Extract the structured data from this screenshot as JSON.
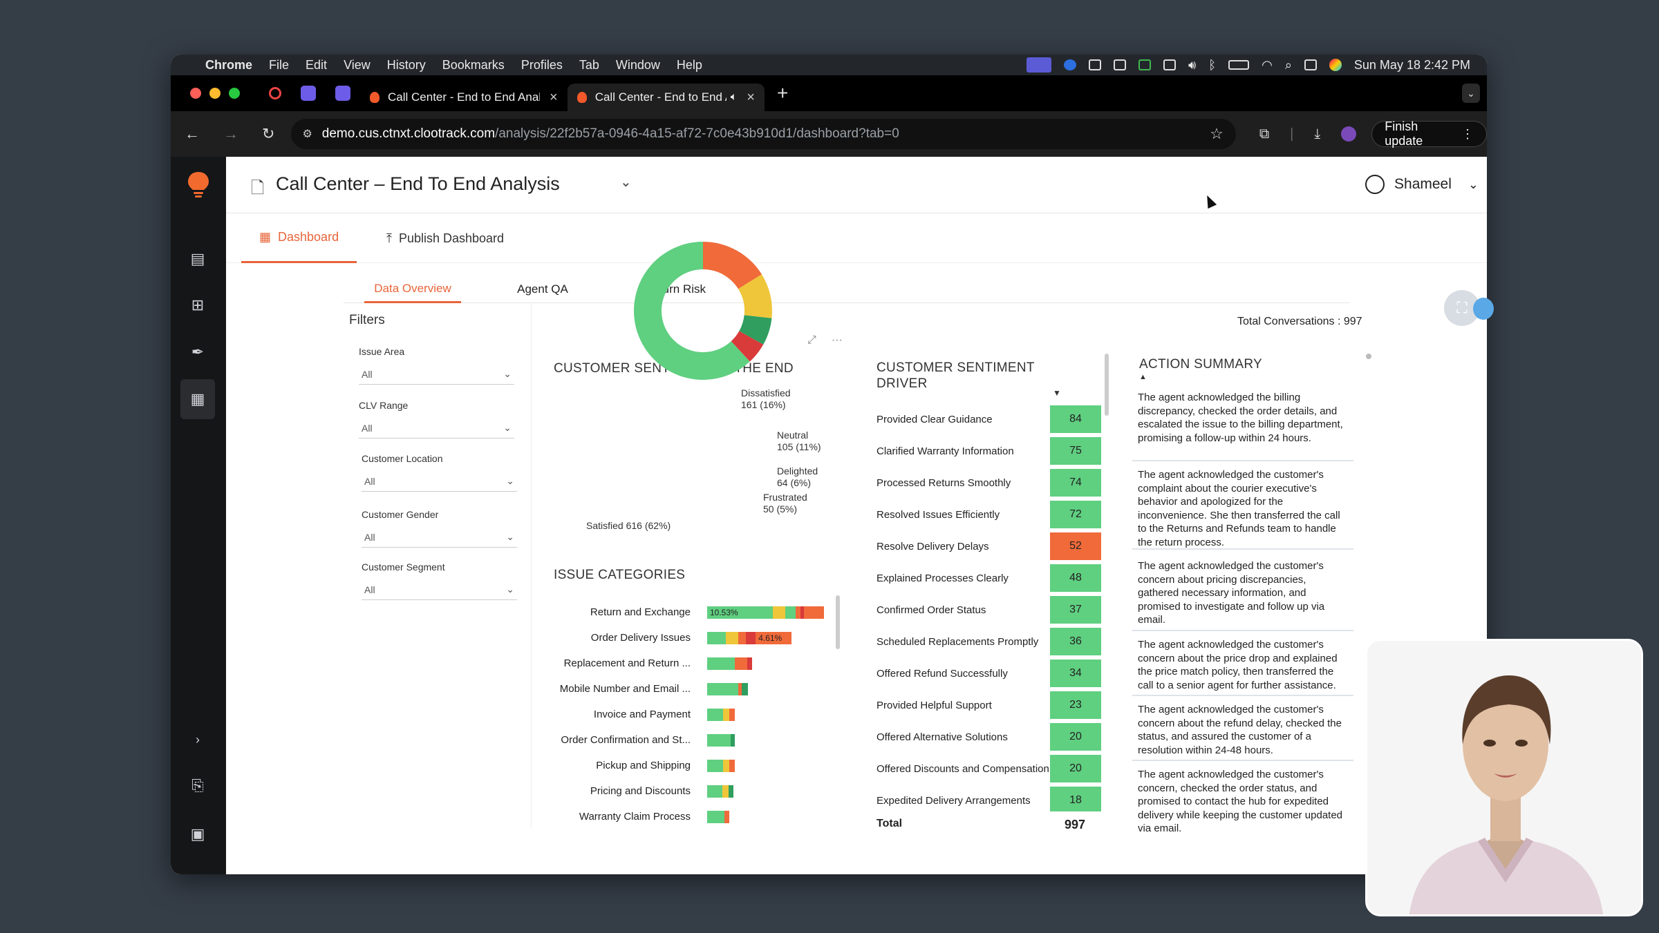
{
  "menubar": {
    "app": "Chrome",
    "items": [
      "File",
      "Edit",
      "View",
      "History",
      "Bookmarks",
      "Profiles",
      "Tab",
      "Window",
      "Help"
    ],
    "datetime": "Sun May 18  2:42 PM"
  },
  "browser": {
    "tabs": [
      {
        "title": "Call Center - End to End Anal"
      },
      {
        "title": "Call Center - End to End A"
      }
    ],
    "url_host": "demo.cus.ctnxt.clootrack.com",
    "url_path": "/analysis/22f2b57a-0946-4a15-af72-7c0e43b910d1/dashboard?tab=0",
    "finish_update": "Finish update"
  },
  "header": {
    "title": "Call Center – End To End Analysis",
    "user": "Shameel"
  },
  "nav": {
    "dashboard": "Dashboard",
    "publish": "Publish Dashboard"
  },
  "subtabs": [
    "Data Overview",
    "Agent QA",
    "Churn Risk"
  ],
  "filters": {
    "title": "Filters",
    "groups": [
      {
        "label": "Issue Area",
        "value": "All"
      },
      {
        "label": "CLV Range",
        "value": "All"
      },
      {
        "label": "Customer Location",
        "value": "All"
      },
      {
        "label": "Customer Gender",
        "value": "All"
      },
      {
        "label": "Customer Segment",
        "value": "All"
      }
    ]
  },
  "total_conversations": "Total Conversations : 997",
  "sentiment_title": "CUSTOMER SENTIMENT AT THE END",
  "issue_title": "ISSUE CATEGORIES",
  "driver_title": "CUSTOMER SENTIMENT DRIVER",
  "action_title": "ACTION SUMMARY",
  "chart_data": [
    {
      "type": "pie",
      "title": "CUSTOMER SENTIMENT AT THE END",
      "slices": [
        {
          "label": "Satisfied",
          "value": 616,
          "pct": "62%",
          "color": "#5fcf80"
        },
        {
          "label": "Dissatisfied",
          "value": 161,
          "pct": "16%",
          "color": "#f06a3a"
        },
        {
          "label": "Neutral",
          "value": 105,
          "pct": "11%",
          "color": "#efc63a"
        },
        {
          "label": "Delighted",
          "value": 64,
          "pct": "6%",
          "color": "#2f9e5e"
        },
        {
          "label": "Frustrated",
          "value": 50,
          "pct": "5%",
          "color": "#d93a3a"
        }
      ],
      "labels": [
        "Dissatisfied\n161 (16%)",
        "Neutral\n105 (11%)",
        "Delighted\n64 (6%)",
        "Frustrated\n50 (5%)",
        "Satisfied 616 (62%)"
      ]
    },
    {
      "type": "bar",
      "title": "ISSUE CATEGORIES",
      "categories": [
        "Return and Exchange",
        "Order Delivery Issues",
        "Replacement and Return ...",
        "Mobile Number and Email ...",
        "Invoice and Payment",
        "Order Confirmation and St...",
        "Pickup and Shipping",
        "Pricing and Discounts",
        "Warranty Claim Process"
      ],
      "labels": {
        "Return and Exchange": "10.53%",
        "Order Delivery Issues": "4.61%"
      },
      "segments": [
        [
          {
            "c": "#5fcf80",
            "w": 0.53
          },
          {
            "c": "#efc63a",
            "w": 0.1
          },
          {
            "c": "#5fcf80",
            "w": 0.08
          },
          {
            "c": "#f06a3a",
            "w": 0.04
          },
          {
            "c": "#d93a3a",
            "w": 0.03
          },
          {
            "c": "#f06a3a",
            "w": 0.16
          }
        ],
        [
          {
            "c": "#5fcf80",
            "w": 0.15
          },
          {
            "c": "#efc63a",
            "w": 0.1
          },
          {
            "c": "#f06a3a",
            "w": 0.06
          },
          {
            "c": "#d93a3a",
            "w": 0.08
          },
          {
            "c": "#f06a3a",
            "w": 0.29
          }
        ],
        [
          {
            "c": "#5fcf80",
            "w": 0.22
          },
          {
            "c": "#f06a3a",
            "w": 0.1
          },
          {
            "c": "#d93a3a",
            "w": 0.04
          }
        ],
        [
          {
            "c": "#5fcf80",
            "w": 0.25
          },
          {
            "c": "#f06a3a",
            "w": 0.03
          },
          {
            "c": "#2f9e5e",
            "w": 0.05
          }
        ],
        [
          {
            "c": "#5fcf80",
            "w": 0.13
          },
          {
            "c": "#efc63a",
            "w": 0.05
          },
          {
            "c": "#f06a3a",
            "w": 0.04
          }
        ],
        [
          {
            "c": "#5fcf80",
            "w": 0.19
          },
          {
            "c": "#2f9e5e",
            "w": 0.03
          }
        ],
        [
          {
            "c": "#5fcf80",
            "w": 0.13
          },
          {
            "c": "#efc63a",
            "w": 0.05
          },
          {
            "c": "#f06a3a",
            "w": 0.04
          }
        ],
        [
          {
            "c": "#5fcf80",
            "w": 0.12
          },
          {
            "c": "#efc63a",
            "w": 0.05
          },
          {
            "c": "#2f9e5e",
            "w": 0.04
          }
        ],
        [
          {
            "c": "#5fcf80",
            "w": 0.14
          },
          {
            "c": "#f06a3a",
            "w": 0.04
          }
        ]
      ]
    },
    {
      "type": "table",
      "title": "CUSTOMER SENTIMENT DRIVER",
      "rows": [
        {
          "label": "Provided Clear Guidance",
          "value": 84,
          "color": "#5fcf80"
        },
        {
          "label": "Clarified Warranty Information",
          "value": 75,
          "color": "#5fcf80"
        },
        {
          "label": "Processed Returns Smoothly",
          "value": 74,
          "color": "#5fcf80"
        },
        {
          "label": "Resolved Issues Efficiently",
          "value": 72,
          "color": "#5fcf80"
        },
        {
          "label": "Resolve Delivery Delays",
          "value": 52,
          "color": "#f06a3a"
        },
        {
          "label": "Explained Processes Clearly",
          "value": 48,
          "color": "#5fcf80"
        },
        {
          "label": "Confirmed Order Status",
          "value": 37,
          "color": "#5fcf80"
        },
        {
          "label": "Scheduled Replacements Promptly",
          "value": 36,
          "color": "#5fcf80"
        },
        {
          "label": "Offered Refund Successfully",
          "value": 34,
          "color": "#5fcf80"
        },
        {
          "label": "Provided Helpful Support",
          "value": 23,
          "color": "#5fcf80"
        },
        {
          "label": "Offered Alternative Solutions",
          "value": 20,
          "color": "#5fcf80"
        },
        {
          "label": "Offered Discounts and Compensation",
          "value": 20,
          "color": "#5fcf80"
        },
        {
          "label": "Expedited Delivery Arrangements",
          "value": 18,
          "color": "#5fcf80"
        }
      ],
      "total_label": "Total",
      "total": 997
    }
  ],
  "actions": [
    "The agent acknowledged the billing discrepancy, checked the order details, and escalated the issue to the billing department, promising a follow-up within 24 hours.",
    "The agent acknowledged the customer's complaint about the courier executive's behavior and apologized for the inconvenience. She then transferred the call to the Returns and Refunds team to handle the return process.",
    "The agent acknowledged the customer's concern about pricing discrepancies, gathered necessary information, and promised to investigate and follow up via email.",
    "The agent acknowledged the customer's concern about the price drop and explained the price match policy, then transferred the call to a senior agent for further assistance.",
    "The agent acknowledged the customer's concern about the refund delay, checked the status, and assured the customer of a resolution within 24-48 hours.",
    "The agent acknowledged the customer's concern, checked the order status, and promised to contact the hub for expedited delivery while keeping the customer updated via email."
  ]
}
